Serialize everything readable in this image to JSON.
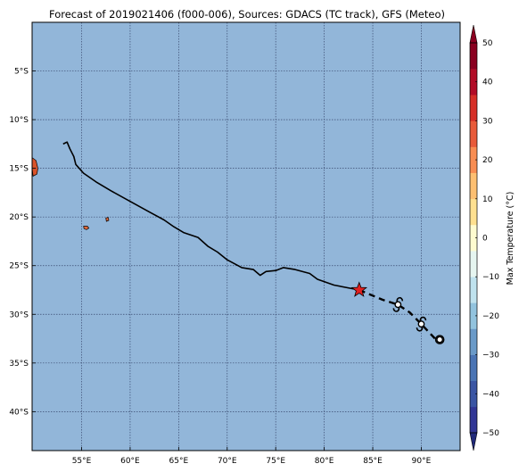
{
  "title": "Forecast of 2019021406 (f000-006), Sources: GDACS (TC track), GFS (Meteo)",
  "map": {
    "ocean_color": "#92b6d9",
    "grid_color": "#3a4a70",
    "x_ticks": [
      {
        "lon": 55,
        "label": "55°E"
      },
      {
        "lon": 60,
        "label": "60°E"
      },
      {
        "lon": 65,
        "label": "65°E"
      },
      {
        "lon": 70,
        "label": "70°E"
      },
      {
        "lon": 75,
        "label": "75°E"
      },
      {
        "lon": 80,
        "label": "80°E"
      },
      {
        "lon": 85,
        "label": "85°E"
      },
      {
        "lon": 90,
        "label": "90°E"
      }
    ],
    "y_ticks": [
      {
        "lat": -5,
        "label": "5°S"
      },
      {
        "lat": -10,
        "label": "10°S"
      },
      {
        "lat": -15,
        "label": "15°S"
      },
      {
        "lat": -20,
        "label": "20°S"
      },
      {
        "lat": -25,
        "label": "25°S"
      },
      {
        "lat": -30,
        "label": "30°S"
      },
      {
        "lat": -35,
        "label": "35°S"
      },
      {
        "lat": -40,
        "label": "40°S"
      }
    ],
    "past_track": [
      [
        53.1,
        -12.5
      ],
      [
        53.5,
        -12.3
      ],
      [
        53.8,
        -13.0
      ],
      [
        54.2,
        -13.8
      ],
      [
        54.4,
        -14.6
      ],
      [
        55.2,
        -15.5
      ],
      [
        56.5,
        -16.4
      ],
      [
        58.0,
        -17.3
      ],
      [
        60.0,
        -18.4
      ],
      [
        62.0,
        -19.5
      ],
      [
        63.5,
        -20.3
      ],
      [
        64.5,
        -21.0
      ],
      [
        65.5,
        -21.6
      ],
      [
        67.0,
        -22.1
      ],
      [
        68.0,
        -23.0
      ],
      [
        69.0,
        -23.6
      ],
      [
        70.0,
        -24.4
      ],
      [
        71.5,
        -25.2
      ],
      [
        72.7,
        -25.4
      ],
      [
        73.4,
        -26.0
      ],
      [
        74.0,
        -25.6
      ],
      [
        75.0,
        -25.5
      ],
      [
        75.8,
        -25.2
      ],
      [
        77.0,
        -25.4
      ],
      [
        78.5,
        -25.8
      ],
      [
        79.3,
        -26.4
      ],
      [
        81.0,
        -27.0
      ],
      [
        83.6,
        -27.5
      ]
    ],
    "forecast_track": [
      [
        83.6,
        -27.5
      ],
      [
        86.0,
        -28.5
      ],
      [
        87.6,
        -29.0
      ],
      [
        88.8,
        -29.8
      ],
      [
        90.0,
        -31.0
      ],
      [
        91.6,
        -32.7
      ]
    ],
    "current_position": {
      "lon": 83.6,
      "lat": -27.5,
      "marker": "star-icon",
      "color": "#e02020"
    },
    "forecast_positions": [
      {
        "lon": 87.6,
        "lat": -29.0,
        "marker": "tropical-cyclone-icon"
      },
      {
        "lon": 90.0,
        "lat": -31.0,
        "marker": "tropical-cyclone-icon"
      },
      {
        "lon": 91.9,
        "lat": -32.6,
        "marker": "circle-icon"
      }
    ],
    "land": [
      {
        "name": "Madagascar-edge",
        "color": "#d8532a",
        "outline": [
          [
            49.9,
            -13.9
          ],
          [
            50.3,
            -14.2
          ],
          [
            50.5,
            -15.0
          ],
          [
            50.4,
            -15.6
          ],
          [
            50.0,
            -15.8
          ],
          [
            49.9,
            -15.0
          ]
        ]
      },
      {
        "name": "Reunion",
        "color": "#e0683a",
        "outline": [
          [
            55.2,
            -20.95
          ],
          [
            55.6,
            -20.95
          ],
          [
            55.75,
            -21.15
          ],
          [
            55.5,
            -21.3
          ],
          [
            55.25,
            -21.2
          ]
        ]
      },
      {
        "name": "Mauritius",
        "color": "#e0683a",
        "outline": [
          [
            57.5,
            -20.1
          ],
          [
            57.75,
            -20.05
          ],
          [
            57.8,
            -20.35
          ],
          [
            57.55,
            -20.45
          ]
        ]
      }
    ]
  },
  "colorbar": {
    "label": "Max Temperature (°C)",
    "ticks": [
      {
        "value": 50,
        "label": "50"
      },
      {
        "value": 40,
        "label": "40"
      },
      {
        "value": 30,
        "label": "30"
      },
      {
        "value": 20,
        "label": "20"
      },
      {
        "value": 10,
        "label": "10"
      },
      {
        "value": 0,
        "label": "0"
      },
      {
        "value": -10,
        "label": "−10"
      },
      {
        "value": -20,
        "label": "−20"
      },
      {
        "value": -30,
        "label": "−30"
      },
      {
        "value": -40,
        "label": "−40"
      },
      {
        "value": -50,
        "label": "−50"
      }
    ],
    "colors": [
      "#313695",
      "#3a55a3",
      "#4a74b4",
      "#6a9ac8",
      "#92c3de",
      "#bfe2ee",
      "#e6f5f0",
      "#fefbd0",
      "#fee090",
      "#fdbf71",
      "#f88d52",
      "#e85b3a",
      "#d62f27",
      "#b10c26",
      "#8a0020"
    ],
    "max_color": "#8a0020",
    "min_color": "#212a7a"
  }
}
